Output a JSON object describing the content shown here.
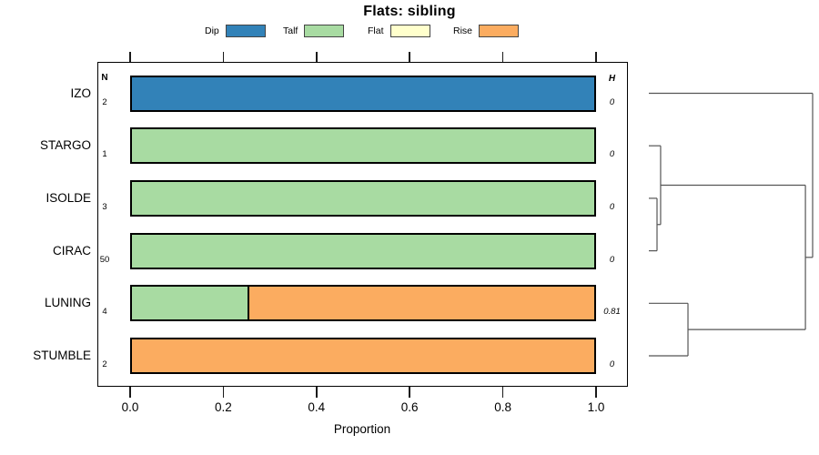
{
  "chart_data": {
    "type": "stacked_bar_horizontal_with_dendrogram",
    "title": "Flats: sibling",
    "xlabel": "Proportion",
    "xlim": [
      0,
      1
    ],
    "x_ticks": [
      "0.0",
      "0.2",
      "0.4",
      "0.6",
      "0.8",
      "1.0"
    ],
    "x_tick_values": [
      0,
      0.2,
      0.4,
      0.6,
      0.8,
      1
    ],
    "legend_position": "top",
    "grid": false,
    "legend": [
      {
        "label": "Dip",
        "color": "#3282B8"
      },
      {
        "label": "Talf",
        "color": "#A8DBA2"
      },
      {
        "label": "Flat",
        "color": "#FFFFCC"
      },
      {
        "label": "Rise",
        "color": "#FBAC60"
      }
    ],
    "columns": {
      "n_header": "N",
      "h_header": "H"
    },
    "rows": [
      {
        "label": "IZO",
        "n": "2",
        "h": "0",
        "segments": [
          {
            "category": "Dip",
            "value": 1.0
          }
        ]
      },
      {
        "label": "STARGO",
        "n": "1",
        "h": "0",
        "segments": [
          {
            "category": "Talf",
            "value": 1.0
          }
        ]
      },
      {
        "label": "ISOLDE",
        "n": "3",
        "h": "0",
        "segments": [
          {
            "category": "Talf",
            "value": 1.0
          }
        ]
      },
      {
        "label": "CIRAC",
        "n": "50",
        "h": "0",
        "segments": [
          {
            "category": "Talf",
            "value": 1.0
          }
        ]
      },
      {
        "label": "LUNING",
        "n": "4",
        "h": "0.81",
        "segments": [
          {
            "category": "Talf",
            "value": 0.25
          },
          {
            "category": "Rise",
            "value": 0.75
          }
        ]
      },
      {
        "label": "STUMBLE",
        "n": "2",
        "h": "0",
        "segments": [
          {
            "category": "Rise",
            "value": 1.0
          }
        ]
      }
    ],
    "dendrogram": {
      "leaves": [
        "IZO",
        "STARGO",
        "ISOLDE",
        "CIRAC",
        "LUNING",
        "STUMBLE"
      ],
      "merges": [
        {
          "a": "ISOLDE",
          "b": "CIRAC",
          "height": 0.05
        },
        {
          "a": "STARGO",
          "b": "@0",
          "height": 0.072
        },
        {
          "a": "LUNING",
          "b": "STUMBLE",
          "height": 0.239
        },
        {
          "a": "@1",
          "b": "@2",
          "height": 0.956
        },
        {
          "a": "IZO",
          "b": "@3",
          "height": 1.0
        }
      ],
      "line_color": "#555555"
    },
    "axis_color": "#1a1a1a"
  }
}
